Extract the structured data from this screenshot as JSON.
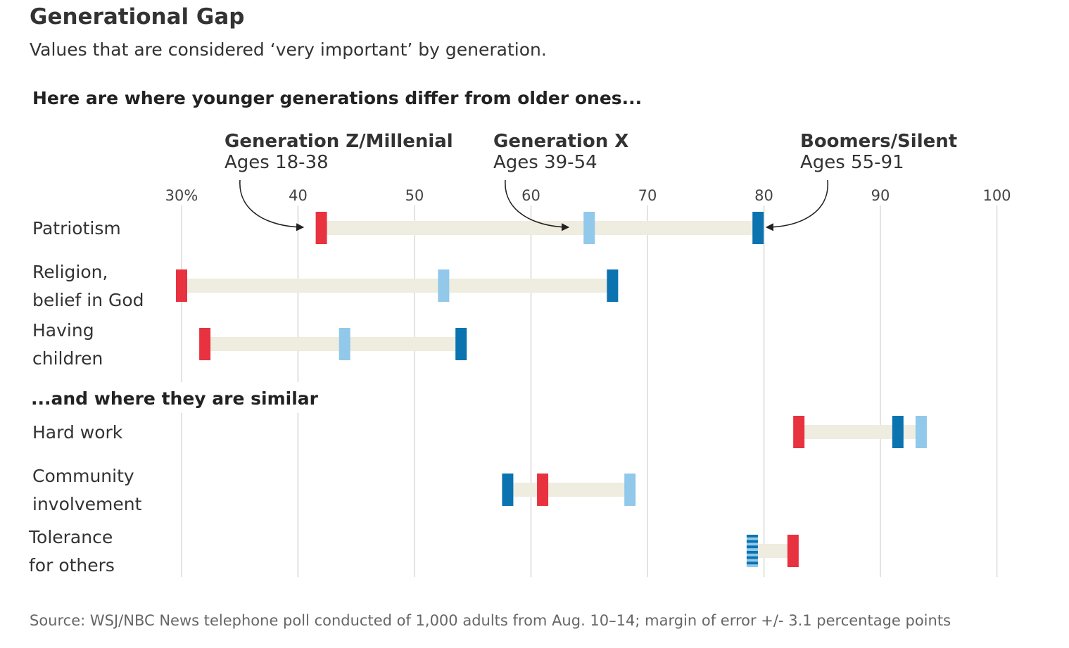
{
  "title": "Generational Gap",
  "subtitle": "Values that are considered ‘very important’ by generation.",
  "source_note": "Source: WSJ/NBC News telephone poll conducted of 1,000 adults from Aug. 10–14; margin of error +/- 3.1 percentage points",
  "colors": {
    "gen_z_millenial": "#e8323f",
    "gen_x": "#92c8ea",
    "boomers_silent": "#0a73b0",
    "range_band": "#efece0",
    "gridline": "#e3e3e3"
  },
  "chart_data": {
    "type": "dot-range",
    "xlim": [
      30,
      100
    ],
    "ticks": [
      30,
      40,
      50,
      60,
      70,
      80,
      90,
      100
    ],
    "tick_labels": [
      "30%",
      "40",
      "50",
      "60",
      "70",
      "80",
      "90",
      "100"
    ],
    "series": [
      {
        "key": "gen_z_millenial",
        "name": "Generation Z/Millenial",
        "ages": "Ages 18-38"
      },
      {
        "key": "gen_x",
        "name": "Generation X",
        "ages": "Ages 39-54"
      },
      {
        "key": "boomers_silent",
        "name": "Boomers/Silent",
        "ages": "Ages 55-91"
      }
    ],
    "sections": [
      {
        "heading": "Here are where younger generations differ from older ones...",
        "rows": [
          {
            "label": [
              "Patriotism"
            ],
            "values": {
              "gen_z_millenial": 42,
              "gen_x": 65,
              "boomers_silent": 79.5
            }
          },
          {
            "label": [
              "Religion,",
              "belief in God"
            ],
            "values": {
              "gen_z_millenial": 30,
              "gen_x": 52.5,
              "boomers_silent": 67
            }
          },
          {
            "label": [
              "Having",
              "children"
            ],
            "values": {
              "gen_z_millenial": 32,
              "gen_x": 44,
              "boomers_silent": 54
            }
          }
        ]
      },
      {
        "heading": "...and where they are similar",
        "rows": [
          {
            "label": [
              "Hard work"
            ],
            "values": {
              "gen_z_millenial": 83,
              "gen_x": 93.5,
              "boomers_silent": 91.5
            }
          },
          {
            "label": [
              "Community",
              "involvement"
            ],
            "values": {
              "gen_z_millenial": 61,
              "gen_x": 68.5,
              "boomers_silent": 58
            }
          },
          {
            "label": [
              "Tolerance",
              "for others"
            ],
            "values": {
              "gen_z_millenial": 82.5,
              "gen_x": 79,
              "boomers_silent": 79
            }
          }
        ]
      }
    ]
  }
}
